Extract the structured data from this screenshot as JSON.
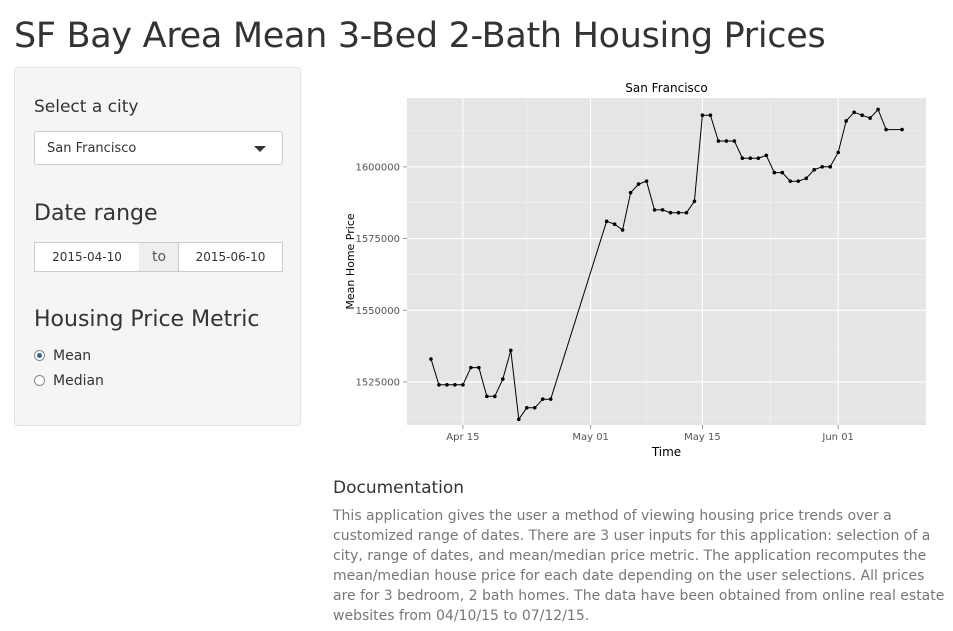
{
  "page": {
    "title": "SF Bay Area Mean 3-Bed 2-Bath Housing Prices"
  },
  "sidebar": {
    "city_label": "Select a city",
    "city_value": "San Francisco",
    "date_label": "Date range",
    "date_start": "2015-04-10",
    "date_sep": "to",
    "date_end": "2015-06-10",
    "metric_label": "Housing Price Metric",
    "metric_options": [
      {
        "label": "Mean",
        "selected": true
      },
      {
        "label": "Median",
        "selected": false
      }
    ]
  },
  "chart_data": {
    "type": "line",
    "title": "San Francisco",
    "xlabel": "Time",
    "ylabel": "Mean Home Price",
    "ylim": [
      1510000,
      1624000
    ],
    "yticks": [
      1525000,
      1550000,
      1575000,
      1600000
    ],
    "ytick_labels": [
      "1525000",
      "1550000",
      "1575000",
      "1600000"
    ],
    "xticks": [
      "2015-04-15",
      "2015-05-01",
      "2015-05-15",
      "2015-06-01"
    ],
    "xtick_labels": [
      "Apr 15",
      "May 01",
      "May 15",
      "Jun 01"
    ],
    "xlim": [
      "2015-04-08",
      "2015-06-12"
    ],
    "grid": true,
    "series": [
      {
        "x": [
          "2015-04-11",
          "2015-04-12",
          "2015-04-13",
          "2015-04-14",
          "2015-04-15",
          "2015-04-16",
          "2015-04-17",
          "2015-04-18",
          "2015-04-19",
          "2015-04-20",
          "2015-04-21",
          "2015-04-22",
          "2015-04-23",
          "2015-04-24",
          "2015-04-25",
          "2015-04-26",
          "2015-05-03",
          "2015-05-04",
          "2015-05-05",
          "2015-05-06",
          "2015-05-07",
          "2015-05-08",
          "2015-05-09",
          "2015-05-10",
          "2015-05-11",
          "2015-05-12",
          "2015-05-13",
          "2015-05-14",
          "2015-05-15",
          "2015-05-16",
          "2015-05-17",
          "2015-05-18",
          "2015-05-19",
          "2015-05-20",
          "2015-05-21",
          "2015-05-22",
          "2015-05-23",
          "2015-05-24",
          "2015-05-25",
          "2015-05-26",
          "2015-05-27",
          "2015-05-28",
          "2015-05-29",
          "2015-05-30",
          "2015-05-31",
          "2015-06-01",
          "2015-06-02",
          "2015-06-03",
          "2015-06-04",
          "2015-06-05",
          "2015-06-06",
          "2015-06-07",
          "2015-06-09"
        ],
        "values": [
          1533000,
          1524000,
          1524000,
          1524000,
          1524000,
          1530000,
          1530000,
          1520000,
          1520000,
          1526000,
          1536000,
          1512000,
          1516000,
          1516000,
          1519000,
          1519000,
          1581000,
          1580000,
          1578000,
          1591000,
          1594000,
          1595000,
          1585000,
          1585000,
          1584000,
          1584000,
          1584000,
          1588000,
          1618000,
          1618000,
          1609000,
          1609000,
          1609000,
          1603000,
          1603000,
          1603000,
          1604000,
          1598000,
          1598000,
          1595000,
          1595000,
          1596000,
          1599000,
          1600000,
          1600000,
          1605000,
          1616000,
          1619000,
          1618000,
          1617000,
          1620000,
          1613000,
          1613000
        ]
      }
    ]
  },
  "documentation": {
    "heading": "Documentation",
    "text": "This application gives the user a method of viewing housing price trends over a customized range of dates. There are 3 user inputs for this application: selection of a city, range of dates, and mean/median price metric. The application recomputes the mean/median house price for each date depending on the user selections. All prices are for 3 bedroom, 2 bath homes. The data have been obtained from online real estate websites from 04/10/15 to 07/12/15."
  }
}
